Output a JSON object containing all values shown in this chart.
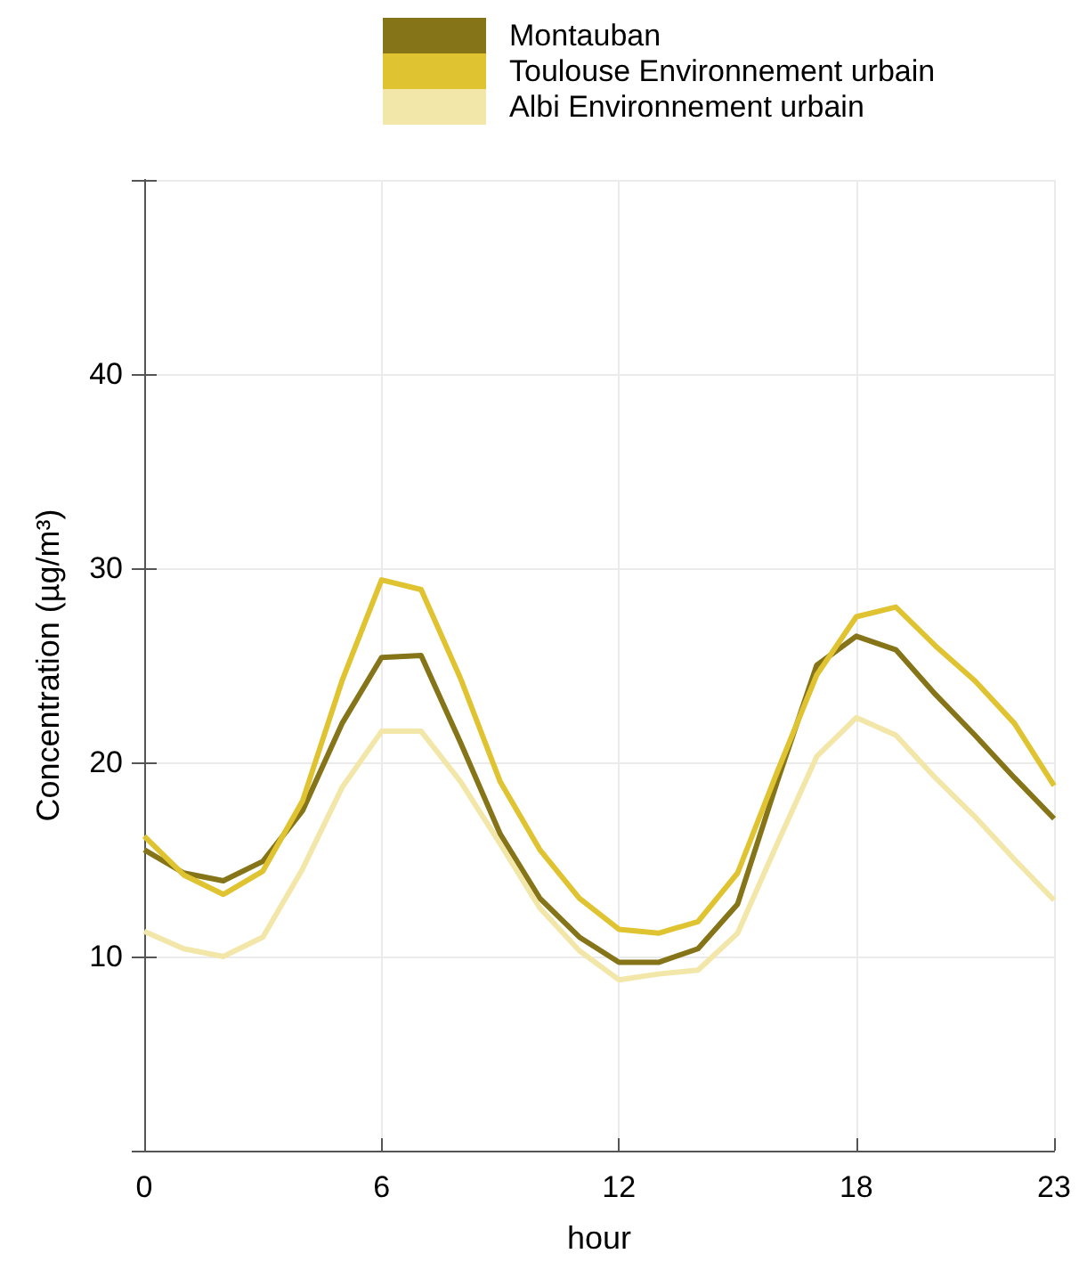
{
  "chart_data": {
    "type": "line",
    "xlabel": "hour",
    "ylabel": "Concentration (µg/m³)",
    "x": [
      0,
      1,
      2,
      3,
      4,
      5,
      6,
      7,
      8,
      9,
      10,
      11,
      12,
      13,
      14,
      15,
      16,
      17,
      18,
      19,
      20,
      21,
      22,
      23
    ],
    "series": [
      {
        "name": "Montauban",
        "color": "#857518",
        "values": [
          15.5,
          14.3,
          13.9,
          14.9,
          17.5,
          22,
          25.4,
          25.5,
          21,
          16.3,
          13,
          11,
          9.7,
          9.7,
          10.4,
          12.7,
          19,
          25,
          26.5,
          25.8,
          23.5,
          21.4,
          19.2,
          17.1
        ]
      },
      {
        "name": "Toulouse Environnement urbain",
        "color": "#e0c330",
        "values": [
          16.2,
          14.2,
          13.2,
          14.4,
          18,
          24.2,
          29.4,
          28.9,
          24.3,
          19,
          15.5,
          13,
          11.4,
          11.2,
          11.8,
          14.3,
          19.5,
          24.5,
          27.5,
          28,
          26,
          24.2,
          22,
          18.8
        ]
      },
      {
        "name": "Albi Environnement urbain",
        "color": "#f2e6a8",
        "values": [
          11.3,
          10.4,
          10,
          11,
          14.5,
          18.7,
          21.6,
          21.6,
          19,
          15.8,
          12.5,
          10.3,
          8.8,
          9.1,
          9.3,
          11.2,
          15.8,
          20.3,
          22.3,
          21.4,
          19.2,
          17.2,
          15,
          12.9
        ]
      }
    ],
    "xlim": [
      0,
      23
    ],
    "xticks": [
      0,
      6,
      12,
      18,
      23
    ],
    "ylim": [
      0,
      50
    ],
    "yticks": [
      {
        "value": 0,
        "label": null
      },
      10,
      20,
      30,
      40,
      {
        "value": 50,
        "label": null
      }
    ],
    "grid": true,
    "legend": "top",
    "marker": "none",
    "line_style": "solid"
  }
}
